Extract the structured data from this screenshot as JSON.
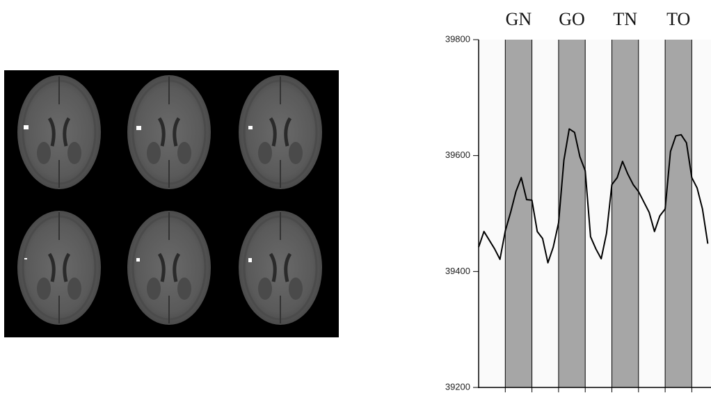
{
  "chart_data": {
    "type": "line",
    "band_labels": [
      "GN",
      "GO",
      "TN",
      "TO"
    ],
    "band_color": "#a6a6a6",
    "categories": [
      null,
      null,
      null,
      null,
      null,
      null,
      null,
      null,
      null,
      null,
      null,
      null,
      null,
      null,
      null,
      null,
      null,
      null,
      null,
      null,
      null,
      null,
      null,
      null,
      null,
      null,
      null,
      null,
      null,
      null,
      null,
      null,
      null,
      null,
      null,
      null,
      null,
      null,
      null,
      null,
      null,
      null,
      null,
      null
    ],
    "values": [
      39442,
      39469,
      39454,
      39439,
      39421,
      39470,
      39502,
      39538,
      39562,
      39524,
      39523,
      39469,
      39457,
      39415,
      39442,
      39484,
      39592,
      39646,
      39640,
      39598,
      39574,
      39460,
      39439,
      39422,
      39466,
      39550,
      39562,
      39590,
      39568,
      39550,
      39538,
      39520,
      39502,
      39469,
      39496,
      39508,
      39607,
      39634,
      39636,
      39622,
      39562,
      39544,
      39508,
      39448
    ],
    "color": "#000000",
    "ylim": [
      39200,
      39800
    ],
    "yticks": [
      39200,
      39400,
      39600,
      39800
    ]
  }
}
